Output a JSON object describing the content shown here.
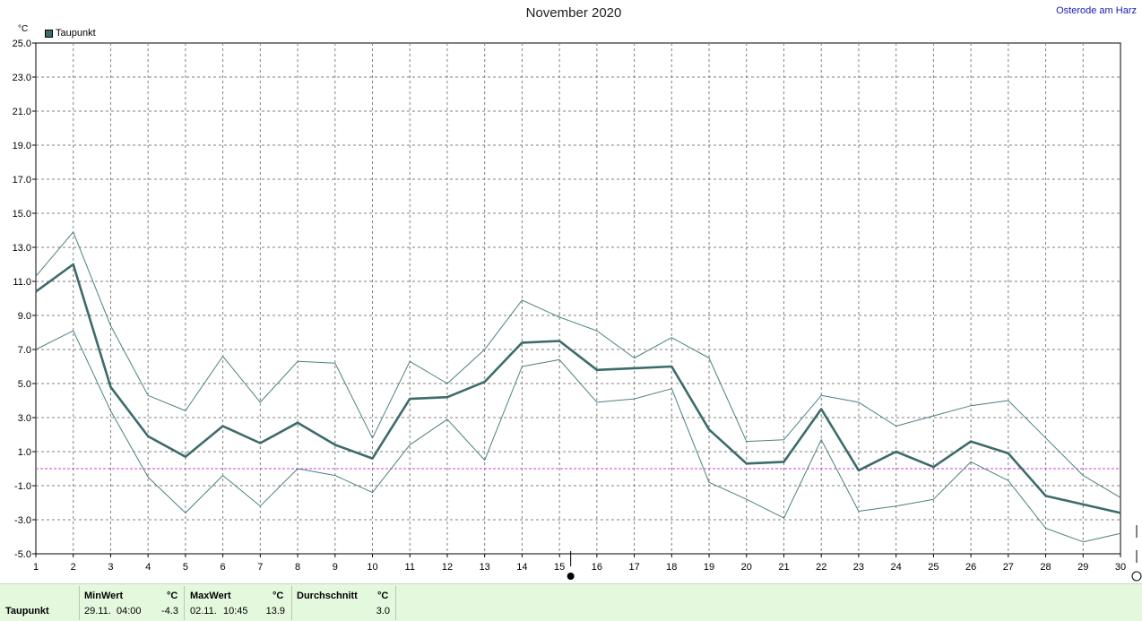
{
  "header": {
    "title": "November 2020",
    "location": "Osterode am Harz",
    "unit": "°C"
  },
  "legend": {
    "label": "Taupunkt",
    "color": "#3d6b6b"
  },
  "colors": {
    "main_line": "#3d6b6b",
    "envelope_line": "#4a8080",
    "zero_line": "#d040d0",
    "grid": "#808080"
  },
  "chart_data": {
    "type": "line",
    "x": [
      1,
      2,
      3,
      4,
      5,
      6,
      7,
      8,
      9,
      10,
      11,
      12,
      13,
      14,
      15,
      16,
      17,
      18,
      19,
      20,
      21,
      22,
      23,
      24,
      25,
      26,
      27,
      28,
      29,
      30
    ],
    "xlim": [
      1,
      30
    ],
    "ylim": [
      -5.0,
      25.0
    ],
    "y_ticks": [
      "-5.0",
      "-3.0",
      "-1.0",
      "1.0",
      "3.0",
      "5.0",
      "7.0",
      "9.0",
      "11.0",
      "13.0",
      "15.0",
      "17.0",
      "19.0",
      "21.0",
      "23.0",
      "25.0"
    ],
    "x_ticks": [
      "1",
      "2",
      "3",
      "4",
      "5",
      "6",
      "7",
      "8",
      "9",
      "10",
      "11",
      "12",
      "13",
      "14",
      "15",
      "16",
      "17",
      "18",
      "19",
      "20",
      "21",
      "22",
      "23",
      "24",
      "25",
      "26",
      "27",
      "28",
      "29",
      "30"
    ],
    "ylabel": "°C",
    "grid": true,
    "reference_line": 0,
    "series": [
      {
        "name": "Taupunkt",
        "role": "mean",
        "values": [
          10.4,
          12.0,
          4.8,
          1.9,
          0.7,
          2.5,
          1.5,
          2.7,
          1.4,
          0.6,
          4.1,
          4.2,
          5.1,
          7.4,
          7.5,
          5.8,
          5.9,
          6.0,
          2.3,
          0.3,
          0.4,
          3.5,
          -0.1,
          1.0,
          0.1,
          1.6,
          0.9,
          -1.6,
          -2.1,
          -2.6
        ]
      },
      {
        "role": "max",
        "values": [
          11.3,
          13.9,
          8.4,
          4.3,
          3.4,
          6.6,
          3.9,
          6.3,
          6.2,
          1.8,
          6.3,
          5.0,
          7.0,
          9.9,
          8.9,
          8.1,
          6.5,
          7.7,
          6.5,
          1.6,
          1.7,
          4.3,
          3.9,
          2.5,
          3.1,
          3.7,
          4.0,
          1.8,
          -0.4,
          -1.7
        ]
      },
      {
        "role": "min",
        "values": [
          7.0,
          8.1,
          3.4,
          -0.5,
          -2.6,
          -0.4,
          -2.2,
          0.0,
          -0.4,
          -1.4,
          1.4,
          2.9,
          0.5,
          6.0,
          6.4,
          3.9,
          4.1,
          4.7,
          -0.8,
          -1.8,
          -2.9,
          1.7,
          -2.5,
          -2.2,
          -1.8,
          0.4,
          -0.7,
          -3.5,
          -4.3,
          -3.8
        ]
      }
    ]
  },
  "stats": {
    "row_label": "Taupunkt",
    "min": {
      "header": "MinWert",
      "unit": "°C",
      "date": "29.11.",
      "time": "04:00",
      "value": "-4.3"
    },
    "max": {
      "header": "MaxWert",
      "unit": "°C",
      "date": "02.11.",
      "time": "10:45",
      "value": "13.9"
    },
    "avg": {
      "header": "Durchschnitt",
      "unit": "°C",
      "value": "3.0"
    }
  }
}
